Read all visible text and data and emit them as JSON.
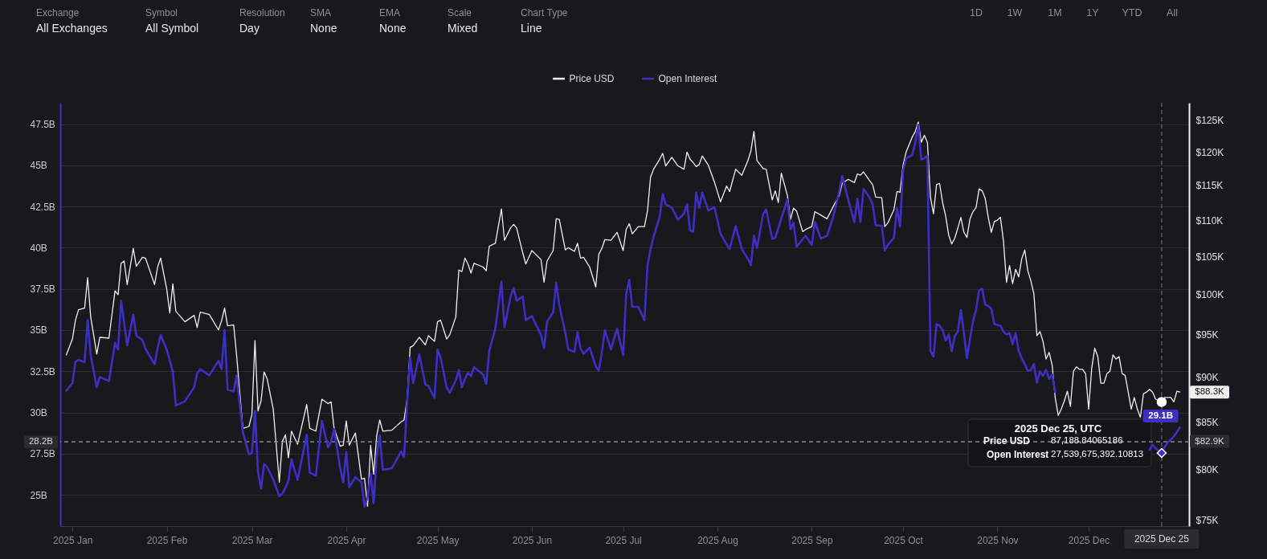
{
  "chart_data": {
    "type": "line",
    "x": [
      "2024-12-30",
      "2025-01-01",
      "2025-01-02",
      "2025-01-03",
      "2025-01-05",
      "2025-01-06",
      "2025-01-07",
      "2025-01-09",
      "2025-01-10",
      "2025-01-13",
      "2025-01-15",
      "2025-01-16",
      "2025-01-17",
      "2025-01-18",
      "2025-01-19",
      "2025-01-21",
      "2025-01-22",
      "2025-01-24",
      "2025-01-25",
      "2025-01-28",
      "2025-01-29",
      "2025-01-30",
      "2025-02-01",
      "2025-02-02",
      "2025-02-03",
      "2025-02-04",
      "2025-02-07",
      "2025-02-10",
      "2025-02-11",
      "2025-02-12",
      "2025-02-15",
      "2025-02-18",
      "2025-02-19",
      "2025-02-20",
      "2025-02-21",
      "2025-02-23",
      "2025-02-24",
      "2025-02-26",
      "2025-02-28",
      "2025-03-01",
      "2025-03-02",
      "2025-03-03",
      "2025-03-04",
      "2025-03-05",
      "2025-03-06",
      "2025-03-08",
      "2025-03-10",
      "2025-03-11",
      "2025-03-12",
      "2025-03-13",
      "2025-03-14",
      "2025-03-16",
      "2025-03-19",
      "2025-03-20",
      "2025-03-22",
      "2025-03-24",
      "2025-03-26",
      "2025-03-27",
      "2025-03-28",
      "2025-03-30",
      "2025-03-31",
      "2025-04-01",
      "2025-04-02",
      "2025-04-04",
      "2025-04-06",
      "2025-04-07",
      "2025-04-08",
      "2025-04-09",
      "2025-04-10",
      "2025-04-11",
      "2025-04-12",
      "2025-04-13",
      "2025-04-16",
      "2025-04-19",
      "2025-04-20",
      "2025-04-21",
      "2025-04-22",
      "2025-04-23",
      "2025-04-25",
      "2025-04-27",
      "2025-04-28",
      "2025-04-30",
      "2025-05-01",
      "2025-05-02",
      "2025-05-04",
      "2025-05-05",
      "2025-05-07",
      "2025-05-08",
      "2025-05-09",
      "2025-05-10",
      "2025-05-11",
      "2025-05-12",
      "2025-05-13",
      "2025-05-16",
      "2025-05-17",
      "2025-05-18",
      "2025-05-20",
      "2025-05-22",
      "2025-05-23",
      "2025-05-25",
      "2025-05-26",
      "2025-05-27",
      "2025-05-29",
      "2025-05-30",
      "2025-06-01",
      "2025-06-04",
      "2025-06-05",
      "2025-06-06",
      "2025-06-08",
      "2025-06-09",
      "2025-06-10",
      "2025-06-12",
      "2025-06-13",
      "2025-06-15",
      "2025-06-16",
      "2025-06-17",
      "2025-06-18",
      "2025-06-20",
      "2025-06-22",
      "2025-06-23",
      "2025-06-24",
      "2025-06-25",
      "2025-06-27",
      "2025-06-29",
      "2025-07-01",
      "2025-07-02",
      "2025-07-03",
      "2025-07-04",
      "2025-07-06",
      "2025-07-08",
      "2025-07-09",
      "2025-07-10",
      "2025-07-11",
      "2025-07-13",
      "2025-07-14",
      "2025-07-15",
      "2025-07-17",
      "2025-07-19",
      "2025-07-21",
      "2025-07-22",
      "2025-07-23",
      "2025-07-24",
      "2025-07-25",
      "2025-07-26",
      "2025-07-27",
      "2025-07-29",
      "2025-07-31",
      "2025-08-02",
      "2025-08-04",
      "2025-08-05",
      "2025-08-07",
      "2025-08-09",
      "2025-08-11",
      "2025-08-12",
      "2025-08-13",
      "2025-08-14",
      "2025-08-16",
      "2025-08-17",
      "2025-08-19",
      "2025-08-20",
      "2025-08-21",
      "2025-08-22",
      "2025-08-24",
      "2025-08-25",
      "2025-08-26",
      "2025-08-27",
      "2025-08-29",
      "2025-08-30",
      "2025-09-01",
      "2025-09-02",
      "2025-09-04",
      "2025-09-06",
      "2025-09-08",
      "2025-09-10",
      "2025-09-11",
      "2025-09-13",
      "2025-09-15",
      "2025-09-16",
      "2025-09-17",
      "2025-09-18",
      "2025-09-20",
      "2025-09-21",
      "2025-09-22",
      "2025-09-24",
      "2025-09-25",
      "2025-09-26",
      "2025-09-28",
      "2025-09-29",
      "2025-09-30",
      "2025-10-01",
      "2025-10-02",
      "2025-10-04",
      "2025-10-05",
      "2025-10-06",
      "2025-10-07",
      "2025-10-08",
      "2025-10-09",
      "2025-10-10",
      "2025-10-11",
      "2025-10-12",
      "2025-10-13",
      "2025-10-14",
      "2025-10-15",
      "2025-10-16",
      "2025-10-17",
      "2025-10-18",
      "2025-10-19",
      "2025-10-20",
      "2025-10-21",
      "2025-10-22",
      "2025-10-23",
      "2025-10-24",
      "2025-10-25",
      "2025-10-26",
      "2025-10-27",
      "2025-10-28",
      "2025-10-29",
      "2025-10-30",
      "2025-10-31",
      "2025-11-01",
      "2025-11-02",
      "2025-11-03",
      "2025-11-04",
      "2025-11-05",
      "2025-11-06",
      "2025-11-07",
      "2025-11-08",
      "2025-11-09",
      "2025-11-10",
      "2025-11-11",
      "2025-11-12",
      "2025-11-13",
      "2025-11-14",
      "2025-11-15",
      "2025-11-16",
      "2025-11-17",
      "2025-11-18",
      "2025-11-19",
      "2025-11-20",
      "2025-11-21",
      "2025-11-22",
      "2025-11-23",
      "2025-11-24",
      "2025-11-25",
      "2025-11-26",
      "2025-11-27",
      "2025-11-28",
      "2025-11-29",
      "2025-11-30",
      "2025-12-01",
      "2025-12-02",
      "2025-12-03",
      "2025-12-04",
      "2025-12-05",
      "2025-12-06",
      "2025-12-07",
      "2025-12-08",
      "2025-12-09",
      "2025-12-10",
      "2025-12-11",
      "2025-12-12",
      "2025-12-13",
      "2025-12-14",
      "2025-12-15",
      "2025-12-16",
      "2025-12-17",
      "2025-12-18",
      "2025-12-19",
      "2025-12-20",
      "2025-12-21",
      "2025-12-22",
      "2025-12-23",
      "2025-12-25",
      "2025-12-26",
      "2025-12-27",
      "2025-12-28",
      "2025-12-29",
      "2025-12-30",
      "2025-12-31"
    ],
    "xlim": [
      "2024-12-28",
      "2026-01-03"
    ],
    "xticks": [
      {
        "value": "2025-01-01",
        "label": "2025 Jan"
      },
      {
        "value": "2025-02-01",
        "label": "2025 Feb"
      },
      {
        "value": "2025-03-01",
        "label": "2025 Mar"
      },
      {
        "value": "2025-04-01",
        "label": "2025 Apr"
      },
      {
        "value": "2025-05-01",
        "label": "2025 May"
      },
      {
        "value": "2025-06-01",
        "label": "2025 Jun"
      },
      {
        "value": "2025-07-01",
        "label": "2025 Jul"
      },
      {
        "value": "2025-08-01",
        "label": "2025 Aug"
      },
      {
        "value": "2025-09-01",
        "label": "2025 Sep"
      },
      {
        "value": "2025-10-01",
        "label": "2025 Oct"
      },
      {
        "value": "2025-11-01",
        "label": "2025 Nov"
      },
      {
        "value": "2025-12-01",
        "label": "2025 Dec"
      }
    ],
    "ylim": [
      23100000000.0,
      48800000000.0
    ],
    "yticks": [
      {
        "value": 25000000000.0,
        "label": "25B"
      },
      {
        "value": 27500000000.0,
        "label": "27.5B"
      },
      {
        "value": 30000000000.0,
        "label": "30B"
      },
      {
        "value": 32500000000.0,
        "label": "32.5B"
      },
      {
        "value": 35000000000.0,
        "label": "35B"
      },
      {
        "value": 37500000000.0,
        "label": "37.5B"
      },
      {
        "value": 40000000000.0,
        "label": "40B"
      },
      {
        "value": 42500000000.0,
        "label": "42.5B"
      },
      {
        "value": 45000000000.0,
        "label": "45B"
      },
      {
        "value": 47500000000.0,
        "label": "47.5B"
      }
    ],
    "y2lim": [
      74400,
      127800
    ],
    "y2ticks": [
      {
        "value": 75000,
        "label": "$75K"
      },
      {
        "value": 80000,
        "label": "$80K"
      },
      {
        "value": 85000,
        "label": "$85K"
      },
      {
        "value": 90000,
        "label": "$90K"
      },
      {
        "value": 95000,
        "label": "$95K"
      },
      {
        "value": 100000,
        "label": "$100K"
      },
      {
        "value": 105000,
        "label": "$105K"
      },
      {
        "value": 110000,
        "label": "$110K"
      },
      {
        "value": 115000,
        "label": "$115K"
      },
      {
        "value": 120000,
        "label": "$120K"
      },
      {
        "value": 125000,
        "label": "$125K"
      }
    ],
    "log": "y2",
    "grid": "y",
    "legend": "top",
    "series": [
      {
        "name": "Price USD",
        "color": "#f0f0f0",
        "axis": "y2",
        "values": [
          92600,
          94500,
          96800,
          98100,
          98300,
          102200,
          97200,
          92700,
          94700,
          94600,
          100500,
          100000,
          104100,
          104400,
          101300,
          106100,
          103700,
          104900,
          104800,
          101300,
          103600,
          104800,
          100700,
          97700,
          101400,
          97900,
          96600,
          97400,
          95900,
          97800,
          97500,
          95600,
          96700,
          98300,
          96100,
          96200,
          92400,
          84300,
          84500,
          85800,
          94300,
          86200,
          87300,
          90600,
          89800,
          86400,
          78700,
          82900,
          83600,
          81200,
          84000,
          82600,
          86900,
          84300,
          84000,
          87500,
          87000,
          87200,
          84300,
          82400,
          82500,
          85100,
          82500,
          83800,
          79000,
          79100,
          76300,
          82500,
          79500,
          83500,
          85200,
          84000,
          84100,
          85000,
          85200,
          87500,
          93500,
          93700,
          94700,
          93800,
          94900,
          94200,
          96600,
          96800,
          94500,
          95000,
          97200,
          103200,
          103000,
          104800,
          104000,
          102800,
          104100,
          103600,
          103100,
          106400,
          106800,
          111600,
          107200,
          108900,
          109400,
          108900,
          105500,
          104000,
          105800,
          104600,
          101600,
          104400,
          105800,
          110200,
          110100,
          105900,
          106200,
          105700,
          106800,
          104800,
          104900,
          103600,
          101000,
          105300,
          106100,
          107300,
          107200,
          108300,
          105800,
          108700,
          109500,
          108100,
          109100,
          109100,
          111300,
          116200,
          117400,
          118900,
          119800,
          117900,
          119200,
          117900,
          117400,
          120000,
          118900,
          118400,
          117800,
          118100,
          119400,
          118000,
          115500,
          112600,
          114900,
          114100,
          117400,
          116500,
          118700,
          120200,
          123200,
          118700,
          117500,
          117400,
          112900,
          114200,
          112500,
          116800,
          113500,
          110100,
          111700,
          111300,
          108400,
          108700,
          109100,
          111200,
          110700,
          110200,
          111900,
          113500,
          115300,
          115900,
          115400,
          116700,
          116500,
          117000,
          115700,
          115100,
          113300,
          113200,
          109100,
          109600,
          111500,
          114100,
          114000,
          118000,
          120000,
          122300,
          123200,
          124700,
          121500,
          122600,
          121500,
          113300,
          110900,
          115100,
          115300,
          112500,
          110600,
          107900,
          106700,
          107500,
          108900,
          110400,
          108300,
          107600,
          110200,
          111200,
          111800,
          114500,
          114200,
          113100,
          110400,
          108300,
          109800,
          110000,
          110400,
          107100,
          101600,
          103800,
          101400,
          103300,
          102300,
          104700,
          105900,
          103100,
          101800,
          100100,
          94900,
          95400,
          94200,
          92100,
          92900,
          91400,
          87700,
          85700,
          86400,
          87300,
          88400,
          86700,
          90700,
          91200,
          90900,
          90900,
          90400,
          86400,
          91000,
          93400,
          92400,
          89300,
          89300,
          90400,
          90700,
          92600,
          92100,
          92400,
          90400,
          90200,
          88300,
          86400,
          87700,
          86400,
          85500,
          88100,
          88300,
          88600,
          88300,
          87500,
          87188.84065186,
          87700,
          87700,
          87700,
          87200,
          88400,
          88300
        ],
        "value_labels": [
          null,
          null,
          null,
          null,
          null,
          null,
          null,
          null,
          null,
          null,
          null,
          null,
          null,
          null,
          null,
          null,
          null,
          null,
          null,
          null,
          null,
          null,
          null,
          null,
          null,
          null,
          null,
          null,
          null,
          null,
          null,
          null,
          null,
          null,
          null,
          null,
          null,
          null,
          null,
          null,
          null,
          null,
          null,
          null,
          null,
          null,
          null,
          null,
          null,
          null,
          null,
          null,
          null,
          null,
          null,
          null,
          null,
          null,
          null,
          null,
          null,
          null,
          null,
          null,
          null,
          null,
          null,
          null,
          null,
          null,
          null,
          null,
          null,
          null,
          null,
          null,
          null,
          null,
          null,
          null,
          null,
          null,
          null,
          null,
          null,
          null,
          null,
          null,
          null,
          null,
          null,
          null,
          null,
          null,
          null,
          null,
          null,
          null,
          null,
          null,
          null,
          null,
          null,
          null,
          null,
          null,
          null,
          null,
          null,
          null,
          null,
          null,
          null,
          null,
          null,
          null,
          null,
          null,
          null,
          null,
          null,
          null,
          null,
          null,
          null,
          null,
          null,
          null,
          null,
          null,
          null,
          null,
          null,
          null,
          null,
          null,
          null,
          null,
          null,
          null,
          null,
          null,
          null,
          null,
          null,
          null,
          null,
          null,
          null,
          null,
          null,
          null,
          null,
          null,
          null,
          null,
          null,
          null,
          null,
          null,
          null,
          null,
          null,
          null,
          null,
          null,
          null,
          null,
          null,
          null,
          null,
          null,
          null,
          null,
          null,
          null,
          null,
          null,
          null,
          null,
          null,
          null,
          null,
          null,
          null,
          null,
          null,
          null,
          null,
          null,
          null,
          null,
          null,
          null,
          null,
          null,
          null,
          null,
          null,
          null,
          null,
          null,
          null,
          null,
          null,
          null,
          null,
          null,
          null,
          null,
          null,
          null,
          null,
          null,
          null,
          null,
          null,
          null,
          null,
          null,
          null,
          null,
          null,
          null,
          null,
          null,
          null,
          null,
          null,
          null,
          null,
          null,
          null,
          null,
          null,
          null,
          null,
          null,
          null,
          null,
          null,
          null,
          null,
          null,
          null,
          null,
          null,
          null,
          null,
          null,
          null,
          null,
          null,
          null,
          null,
          null,
          null,
          null,
          null,
          null,
          null,
          null,
          null,
          null,
          null,
          null,
          null,
          null,
          null,
          null,
          null,
          null,
          null,
          null,
          null,
          null,
          null,
          null,
          "$88.3K"
        ]
      },
      {
        "name": "Open Interest",
        "color": "#3e2ec4",
        "values": [
          31320000000.0,
          31780000000.0,
          33090000000.0,
          33190000000.0,
          33050000000.0,
          35600000000.0,
          33480000000.0,
          31530000000.0,
          32150000000.0,
          31900000000.0,
          34210000000.0,
          33820000000.0,
          36780000000.0,
          35430000000.0,
          34070000000.0,
          35930000000.0,
          34660000000.0,
          34410000000.0,
          33870000000.0,
          32930000000.0,
          33900000000.0,
          34700000000.0,
          33820000000.0,
          33140000000.0,
          32460000000.0,
          30420000000.0,
          30680000000.0,
          31530000000.0,
          32370000000.0,
          32630000000.0,
          32250000000.0,
          33140000000.0,
          32630000000.0,
          35000000000.0,
          31390000000.0,
          31270000000.0,
          32240000000.0,
          28810000000.0,
          27460000000.0,
          27540000000.0,
          30080000000.0,
          26350000000.0,
          25370000000.0,
          26860000000.0,
          26690000000.0,
          25930000000.0,
          24910000000.0,
          25080000000.0,
          25420000000.0,
          25850000000.0,
          27150000000.0,
          25900000000.0,
          28640000000.0,
          26350000000.0,
          26150000000.0,
          29490000000.0,
          27880000000.0,
          28220000000.0,
          28980000000.0,
          26610000000.0,
          25760000000.0,
          27590000000.0,
          25470000000.0,
          26070000000.0,
          25760000000.0,
          24270000000.0,
          24830000000.0,
          26270000000.0,
          24490000000.0,
          27290000000.0,
          28610000000.0,
          26520000000.0,
          26610000000.0,
          27630000000.0,
          27290000000.0,
          30590000000.0,
          33340000000.0,
          31780000000.0,
          33530000000.0,
          31700000000.0,
          31610000000.0,
          30880000000.0,
          33820000000.0,
          33340000000.0,
          31530000000.0,
          31190000000.0,
          31950000000.0,
          32580000000.0,
          31530000000.0,
          32030000000.0,
          32410000000.0,
          32200000000.0,
          32750000000.0,
          32290000000.0,
          31730000000.0,
          33730000000.0,
          35090000000.0,
          37940000000.0,
          35170000000.0,
          37040000000.0,
          37550000000.0,
          36780000000.0,
          37040000000.0,
          35600000000.0,
          35850000000.0,
          34700000000.0,
          33900000000.0,
          35510000000.0,
          36070000000.0,
          37880000000.0,
          36530000000.0,
          34830000000.0,
          33820000000.0,
          33680000000.0,
          34880000000.0,
          33900000000.0,
          33560000000.0,
          33930000000.0,
          32800000000.0,
          32540000000.0,
          33650000000.0,
          35000000000.0,
          33820000000.0,
          35090000000.0,
          33480000000.0,
          37210000000.0,
          38050000000.0,
          36410000000.0,
          36410000000.0,
          35600000000.0,
          38900000000.0,
          39920000000.0,
          40680000000.0,
          41870000000.0,
          43260000000.0,
          42630000000.0,
          42430000000.0,
          41700000000.0,
          42070000000.0,
          42630000000.0,
          41060000000.0,
          40970000000.0,
          43350000000.0,
          42410000000.0,
          43350000000.0,
          42260000000.0,
          42460000000.0,
          40850000000.0,
          40210000000.0,
          39920000000.0,
          41310000000.0,
          39920000000.0,
          39330000000.0,
          38940000000.0,
          40730000000.0,
          40000000000.0,
          42040000000.0,
          42330000000.0,
          40550000000.0,
          40600000000.0,
          41190000000.0,
          41790000000.0,
          42920000000.0,
          41110000000.0,
          41530000000.0,
          40060000000.0,
          40510000000.0,
          40720000000.0,
          40170000000.0,
          41560000000.0,
          40550000000.0,
          40730000000.0,
          41840000000.0,
          43400000000.0,
          44360000000.0,
          42890000000.0,
          41560000000.0,
          42970000000.0,
          41560000000.0,
          43570000000.0,
          43060000000.0,
          42630000000.0,
          41360000000.0,
          41330000000.0,
          39840000000.0,
          40170000000.0,
          40600000000.0,
          42410000000.0,
          41280000000.0,
          44670000000.0,
          45430000000.0,
          45630000000.0,
          46360000000.0,
          47470000000.0,
          45350000000.0,
          45430000000.0,
          45580000000.0,
          33740000000.0,
          33380000000.0,
          35360000000.0,
          35270000000.0,
          35000000000.0,
          34370000000.0,
          34730000000.0,
          33710000000.0,
          34640000000.0,
          34910000000.0,
          36220000000.0,
          34820000000.0,
          33290000000.0,
          34460000000.0,
          35540000000.0,
          36250000000.0,
          37420000000.0,
          37510000000.0,
          36520000000.0,
          36470000000.0,
          36290000000.0,
          35360000000.0,
          35300000000.0,
          35270000000.0,
          34910000000.0,
          34730000000.0,
          34820000000.0,
          34140000000.0,
          34820000000.0,
          33740000000.0,
          33290000000.0,
          32930000000.0,
          32520000000.0,
          32580000000.0,
          32930000000.0,
          31810000000.0,
          32490000000.0,
          32220000000.0,
          32580000000.0,
          32040000000.0,
          32310000000.0,
          31230000000.0,
          null,
          null,
          null,
          null,
          null,
          null,
          null,
          null,
          null,
          null,
          null,
          null,
          null,
          null,
          null,
          null,
          null,
          null,
          null,
          null,
          null,
          null,
          null,
          null,
          null,
          null,
          null,
          null,
          null,
          null,
          27730000000.0,
          28040000000.0,
          27820000000.0,
          27539675392.10813,
          27910000000.0,
          28180000000.0,
          28360000000.0,
          28540000000.0,
          28810000000.0,
          29100000000.0
        ],
        "value_labels": [
          null,
          null,
          null,
          null,
          null,
          null,
          null,
          null,
          null,
          null,
          null,
          null,
          null,
          null,
          null,
          null,
          null,
          null,
          null,
          null,
          null,
          null,
          null,
          null,
          null,
          null,
          null,
          null,
          null,
          null,
          null,
          null,
          null,
          null,
          null,
          null,
          null,
          null,
          null,
          null,
          null,
          null,
          null,
          null,
          null,
          null,
          null,
          null,
          null,
          null,
          null,
          null,
          null,
          null,
          null,
          null,
          null,
          null,
          null,
          null,
          null,
          null,
          null,
          null,
          null,
          null,
          null,
          null,
          null,
          null,
          null,
          null,
          null,
          null,
          null,
          null,
          null,
          null,
          null,
          null,
          null,
          null,
          null,
          null,
          null,
          null,
          null,
          null,
          null,
          null,
          null,
          null,
          null,
          null,
          null,
          null,
          null,
          null,
          null,
          null,
          null,
          null,
          null,
          null,
          null,
          null,
          null,
          null,
          null,
          null,
          null,
          null,
          null,
          null,
          null,
          null,
          null,
          null,
          null,
          null,
          null,
          null,
          null,
          null,
          null,
          null,
          null,
          null,
          null,
          null,
          null,
          null,
          null,
          null,
          null,
          null,
          null,
          null,
          null,
          null,
          null,
          null,
          null,
          null,
          null,
          null,
          null,
          null,
          null,
          null,
          null,
          null,
          null,
          null,
          null,
          null,
          null,
          null,
          null,
          null,
          null,
          null,
          null,
          null,
          null,
          null,
          null,
          null,
          null,
          null,
          null,
          null,
          null,
          null,
          null,
          null,
          null,
          null,
          null,
          null,
          null,
          null,
          null,
          null,
          null,
          null,
          null,
          null,
          null,
          null,
          null,
          null,
          null,
          null,
          null,
          null,
          null,
          null,
          null,
          null,
          null,
          null,
          null,
          null,
          null,
          null,
          null,
          null,
          null,
          null,
          null,
          null,
          null,
          null,
          null,
          null,
          null,
          null,
          null,
          null,
          null,
          null,
          null,
          null,
          null,
          null,
          null,
          null,
          null,
          null,
          null,
          null,
          null,
          null,
          null,
          null,
          null,
          null,
          null,
          null,
          null,
          null,
          null,
          null,
          null,
          null,
          null,
          null,
          null,
          null,
          null,
          null,
          null,
          null,
          null,
          null,
          null,
          null,
          null,
          null,
          null,
          null,
          null,
          null,
          null,
          null,
          null,
          null,
          null,
          null,
          null,
          null,
          null,
          null,
          null,
          null,
          null,
          null,
          "29.1B"
        ]
      },
      {
        "type": "scatter",
        "marker": "circle",
        "color": "#ffffff",
        "axis": "y2",
        "x": [
          "2025-12-25"
        ],
        "values": [
          87188.84065186
        ]
      },
      {
        "type": "scatter",
        "marker": "diamond",
        "color": "#3e2ec4",
        "x": [
          "2025-12-25"
        ],
        "values": [
          27539675392.10813
        ]
      }
    ],
    "ref_lines": [
      {
        "axis": "x",
        "value": "2025-12-25",
        "label": "2025 Dec 25",
        "line_style": "dashed",
        "color": "#74747e"
      },
      {
        "axis": "y",
        "value": 28200000000.0,
        "label": "28.2B",
        "line_style": "dashed",
        "color": "#74747e"
      },
      {
        "axis": "y2",
        "value": 82900,
        "label": "$82.9K",
        "line_style": "dashed",
        "color": "#74747e"
      }
    ],
    "annotations": [
      "Exchange",
      "All Exchanges",
      "Symbol",
      "All Symbol",
      "Resolution",
      "Day",
      "SMA",
      "None",
      "EMA",
      "None",
      "Scale",
      "Mixed",
      "Chart Type",
      "Line",
      "1D",
      "1W",
      "1M",
      "1Y",
      "YTD",
      "All",
      "2025 Dec 25, UTC",
      "Price USD",
      "87,188.84065186",
      "Open Interest",
      "27,539,675,392.10813"
    ]
  }
}
